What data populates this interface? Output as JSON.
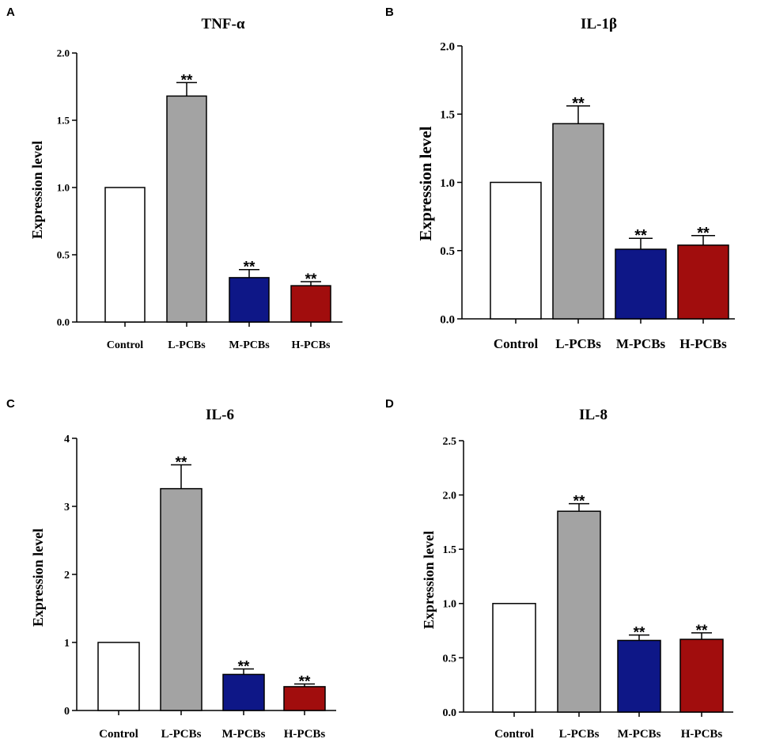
{
  "figure": {
    "colors": {
      "Control": "#ffffff",
      "L-PCBs": "#a3a3a3",
      "M-PCBs": "#0e1787",
      "H-PCBs": "#a10d0d",
      "axis": "#000000"
    }
  },
  "chart_data": [
    {
      "type": "bar",
      "panel": "A",
      "title": "TNF-α",
      "xlabel": "",
      "ylabel": "Expression level",
      "ylim": [
        0,
        2.0
      ],
      "ticks": [
        0.0,
        0.5,
        1.0,
        1.5,
        2.0
      ],
      "tick_labels": [
        "0.0",
        "0.5",
        "1.0",
        "1.5",
        "2.0"
      ],
      "categories": [
        "Control",
        "L-PCBs",
        "M-PCBs",
        "H-PCBs"
      ],
      "values": [
        1.0,
        1.68,
        0.33,
        0.27
      ],
      "errors": [
        0,
        0.1,
        0.06,
        0.03
      ],
      "significance": [
        "",
        "**",
        "**",
        "**"
      ]
    },
    {
      "type": "bar",
      "panel": "B",
      "title": "IL-1β",
      "xlabel": "",
      "ylabel": "Expression level",
      "ylim": [
        0,
        2.0
      ],
      "ticks": [
        0.0,
        0.5,
        1.0,
        1.5,
        2.0
      ],
      "tick_labels": [
        "0.0",
        "0.5",
        "1.0",
        "1.5",
        "2.0"
      ],
      "categories": [
        "Control",
        "L-PCBs",
        "M-PCBs",
        "H-PCBs"
      ],
      "values": [
        1.0,
        1.43,
        0.51,
        0.54
      ],
      "errors": [
        0,
        0.13,
        0.08,
        0.07
      ],
      "significance": [
        "",
        "**",
        "**",
        "**"
      ]
    },
    {
      "type": "bar",
      "panel": "C",
      "title": "IL-6",
      "xlabel": "",
      "ylabel": "Expression level",
      "ylim": [
        0,
        4
      ],
      "ticks": [
        0,
        1,
        2,
        3,
        4
      ],
      "tick_labels": [
        "0",
        "1",
        "2",
        "3",
        "4"
      ],
      "categories": [
        "Control",
        "L-PCBs",
        "M-PCBs",
        "H-PCBs"
      ],
      "values": [
        1.0,
        3.26,
        0.53,
        0.35
      ],
      "errors": [
        0,
        0.35,
        0.08,
        0.04
      ],
      "significance": [
        "",
        "**",
        "**",
        "**"
      ]
    },
    {
      "type": "bar",
      "panel": "D",
      "title": "IL-8",
      "xlabel": "",
      "ylabel": "Expression level",
      "ylim": [
        0,
        2.5
      ],
      "ticks": [
        0.0,
        0.5,
        1.0,
        1.5,
        2.0,
        2.5
      ],
      "tick_labels": [
        "0.0",
        "0.5",
        "1.0",
        "1.5",
        "2.0",
        "2.5"
      ],
      "categories": [
        "Control",
        "L-PCBs",
        "M-PCBs",
        "H-PCBs"
      ],
      "values": [
        1.0,
        1.85,
        0.66,
        0.67
      ],
      "errors": [
        0,
        0.07,
        0.05,
        0.06
      ],
      "significance": [
        "",
        "**",
        "**",
        "**"
      ]
    }
  ]
}
